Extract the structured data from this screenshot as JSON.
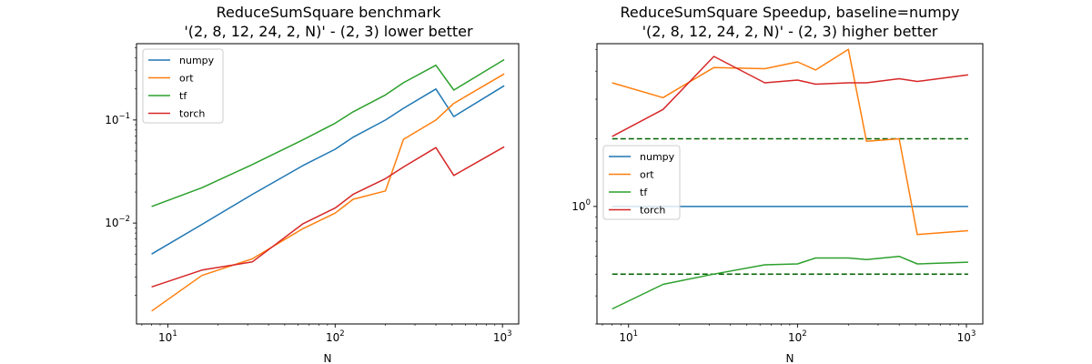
{
  "colors": {
    "numpy": "#1f77b4",
    "ort": "#ff7f0e",
    "tf": "#2ca02c",
    "torch": "#d62728",
    "reference": "#006400"
  },
  "chart_data": [
    {
      "type": "line",
      "title": "ReduceSumSquare benchmark",
      "subtitle": "'(2, 8, 12, 24, 2, N)' - (2, 3) lower better",
      "xlabel": "N",
      "ylabel": "",
      "xscale": "log",
      "yscale": "log",
      "xlim": [
        6.5,
        1250
      ],
      "ylim": [
        0.00105,
        0.55
      ],
      "xticks": [
        {
          "base": "10",
          "exp": "1",
          "value": 10
        },
        {
          "base": "10",
          "exp": "2",
          "value": 100
        },
        {
          "base": "10",
          "exp": "3",
          "value": 1000
        }
      ],
      "yticks": [
        {
          "base": "10",
          "exp": "−2",
          "value": 0.01
        },
        {
          "base": "10",
          "exp": "−1",
          "value": 0.1
        }
      ],
      "legend": "upper-left",
      "x": [
        8,
        16,
        32,
        64,
        100,
        128,
        200,
        256,
        400,
        512,
        1024
      ],
      "series": [
        {
          "name": "numpy",
          "values": [
            0.005,
            0.0097,
            0.019,
            0.036,
            0.052,
            0.068,
            0.1,
            0.13,
            0.2,
            0.108,
            0.215
          ]
        },
        {
          "name": "ort",
          "values": [
            0.0014,
            0.0031,
            0.0045,
            0.0088,
            0.0125,
            0.017,
            0.0205,
            0.065,
            0.1,
            0.145,
            0.28
          ]
        },
        {
          "name": "tf",
          "values": [
            0.0145,
            0.022,
            0.037,
            0.064,
            0.093,
            0.12,
            0.175,
            0.23,
            0.34,
            0.195,
            0.385
          ]
        },
        {
          "name": "torch",
          "values": [
            0.0024,
            0.0035,
            0.0042,
            0.0098,
            0.014,
            0.019,
            0.027,
            0.035,
            0.054,
            0.029,
            0.055
          ]
        }
      ]
    },
    {
      "type": "line",
      "title": "ReduceSumSquare Speedup, baseline=numpy",
      "subtitle": "'(2, 8, 12, 24, 2, N)' - (2, 3) higher better",
      "xlabel": "N",
      "ylabel": "",
      "xscale": "log",
      "yscale": "log",
      "xlim": [
        6.5,
        1250
      ],
      "ylim": [
        0.3,
        5.3
      ],
      "xticks": [
        {
          "base": "10",
          "exp": "1",
          "value": 10
        },
        {
          "base": "10",
          "exp": "2",
          "value": 100
        },
        {
          "base": "10",
          "exp": "3",
          "value": 1000
        }
      ],
      "yticks": [
        {
          "base": "10",
          "exp": "0",
          "value": 1
        }
      ],
      "legend": "center-left",
      "x": [
        8,
        16,
        32,
        64,
        100,
        128,
        200,
        256,
        400,
        512,
        1024
      ],
      "series": [
        {
          "name": "numpy",
          "values": [
            1,
            1,
            1,
            1,
            1,
            1,
            1,
            1,
            1,
            1,
            1
          ]
        },
        {
          "name": "ort",
          "values": [
            3.55,
            3.05,
            4.15,
            4.1,
            4.4,
            4.05,
            5.0,
            1.95,
            2.0,
            0.75,
            0.78
          ]
        },
        {
          "name": "tf",
          "values": [
            0.35,
            0.45,
            0.5,
            0.55,
            0.555,
            0.59,
            0.59,
            0.58,
            0.6,
            0.555,
            0.565
          ]
        },
        {
          "name": "torch",
          "values": [
            2.05,
            2.7,
            4.65,
            3.55,
            3.65,
            3.5,
            3.55,
            3.55,
            3.7,
            3.6,
            3.85
          ]
        }
      ],
      "reference_lines": [
        2.0,
        0.5
      ]
    }
  ]
}
